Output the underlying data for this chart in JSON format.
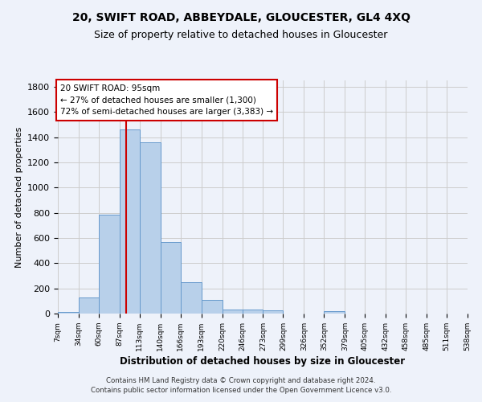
{
  "title": "20, SWIFT ROAD, ABBEYDALE, GLOUCESTER, GL4 4XQ",
  "subtitle": "Size of property relative to detached houses in Gloucester",
  "xlabel": "Distribution of detached houses by size in Gloucester",
  "ylabel": "Number of detached properties",
  "bar_values": [
    15,
    130,
    785,
    1460,
    1360,
    565,
    250,
    110,
    35,
    30,
    25,
    0,
    0,
    20,
    0,
    0,
    0,
    0,
    0,
    0
  ],
  "bin_edges": [
    7,
    34,
    60,
    87,
    113,
    140,
    166,
    193,
    220,
    246,
    273,
    299,
    326,
    352,
    379,
    405,
    432,
    458,
    485,
    511,
    538
  ],
  "tick_labels": [
    "7sqm",
    "34sqm",
    "60sqm",
    "87sqm",
    "113sqm",
    "140sqm",
    "166sqm",
    "193sqm",
    "220sqm",
    "246sqm",
    "273sqm",
    "299sqm",
    "326sqm",
    "352sqm",
    "379sqm",
    "405sqm",
    "432sqm",
    "458sqm",
    "485sqm",
    "511sqm",
    "538sqm"
  ],
  "bar_color": "#b8d0ea",
  "bar_edge_color": "#6699cc",
  "property_size": 95,
  "vline_color": "#cc0000",
  "annotation_line1": "20 SWIFT ROAD: 95sqm",
  "annotation_line2": "← 27% of detached houses are smaller (1,300)",
  "annotation_line3": "72% of semi-detached houses are larger (3,383) →",
  "annotation_box_color": "#ffffff",
  "annotation_box_edge": "#cc0000",
  "ylim": [
    0,
    1850
  ],
  "yticks": [
    0,
    200,
    400,
    600,
    800,
    1000,
    1200,
    1400,
    1600,
    1800
  ],
  "grid_color": "#cccccc",
  "background_color": "#eef2fa",
  "footer_line1": "Contains HM Land Registry data © Crown copyright and database right 2024.",
  "footer_line2": "Contains public sector information licensed under the Open Government Licence v3.0."
}
